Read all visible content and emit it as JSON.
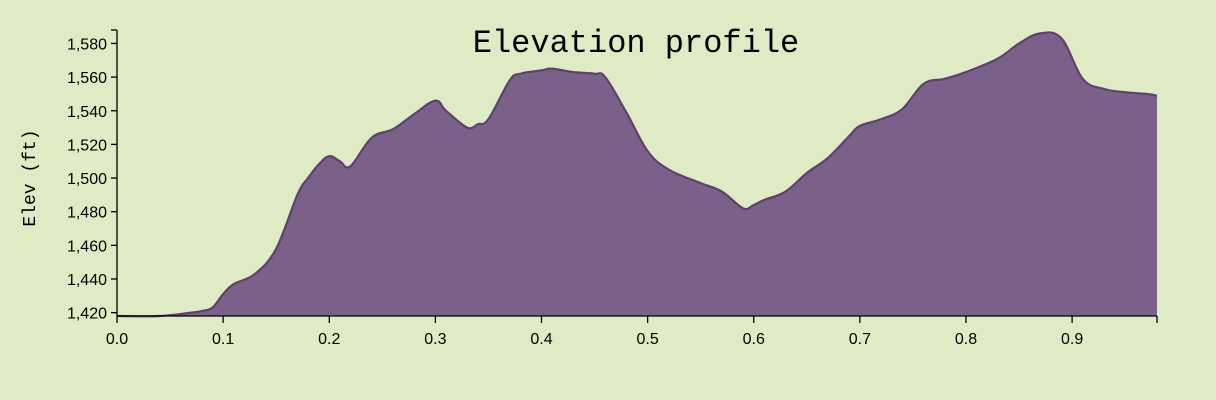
{
  "chart_data": {
    "type": "area",
    "title": "Elevation profile",
    "xlabel": "",
    "ylabel": "Elev (ft)",
    "xlim": [
      0,
      0.98
    ],
    "ylim": [
      1418,
      1588
    ],
    "grid": false,
    "x_ticks": [
      0.0,
      0.1,
      0.2,
      0.3,
      0.4,
      0.5,
      0.6,
      0.7,
      0.8,
      0.9
    ],
    "x_tick_labels": [
      "0.0",
      "0.1",
      "0.2",
      "0.3",
      "0.4",
      "0.5",
      "0.6",
      "0.7",
      "0.8",
      "0.9"
    ],
    "y_ticks": [
      1420,
      1440,
      1460,
      1480,
      1500,
      1520,
      1540,
      1560,
      1580
    ],
    "y_tick_labels": [
      "1,420",
      "1,440",
      "1,460",
      "1,480",
      "1,500",
      "1,520",
      "1,540",
      "1,560",
      "1,580"
    ],
    "colors": {
      "background": "#deebc4",
      "fill": "#7b6189",
      "stroke": "#5e416f"
    },
    "series": [
      {
        "x": [
          0.0,
          0.04,
          0.07,
          0.08,
          0.09,
          0.1,
          0.11,
          0.13,
          0.15,
          0.17,
          0.18,
          0.19,
          0.2,
          0.21,
          0.22,
          0.24,
          0.26,
          0.28,
          0.3,
          0.31,
          0.33,
          0.34,
          0.35,
          0.37,
          0.38,
          0.4,
          0.41,
          0.43,
          0.45,
          0.46,
          0.48,
          0.5,
          0.52,
          0.55,
          0.57,
          0.59,
          0.6,
          0.61,
          0.63,
          0.65,
          0.67,
          0.69,
          0.7,
          0.72,
          0.74,
          0.76,
          0.78,
          0.8,
          0.83,
          0.85,
          0.87,
          0.89,
          0.91,
          0.93,
          0.95,
          0.97,
          0.98
        ],
        "values": [
          1418,
          1418,
          1420,
          1421,
          1423,
          1431,
          1437,
          1443,
          1458,
          1490,
          1500,
          1508,
          1513,
          1510,
          1507,
          1524,
          1529,
          1538,
          1546,
          1540,
          1530,
          1532,
          1535,
          1558,
          1562,
          1564,
          1565,
          1563,
          1562,
          1560,
          1539,
          1516,
          1505,
          1497,
          1492,
          1482,
          1484,
          1487,
          1492,
          1503,
          1512,
          1525,
          1531,
          1535,
          1541,
          1556,
          1559,
          1563,
          1571,
          1580,
          1586,
          1583,
          1559,
          1553,
          1551,
          1550,
          1549
        ]
      }
    ]
  }
}
